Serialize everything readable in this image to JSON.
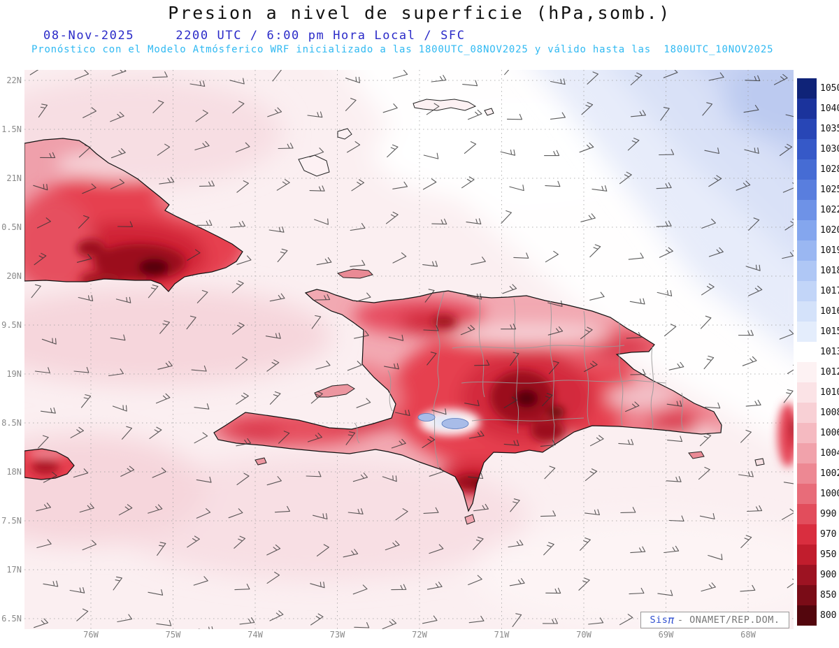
{
  "header": {
    "title": "Presion a nivel de superficie (hPa,somb.)",
    "subtitle": "08-Nov-2025     2200 UTC / 6:00 pm Hora Local / SFC",
    "forecast_note": "Pronóstico con el Modelo Atmósferico WRF inicializado a las 1800UTC_08NOV2025 y válido hasta las  1800UTC_10NOV2025"
  },
  "colors": {
    "title": "#111111",
    "subtitle": "#2a2ac8",
    "forecast_note": "#2fb9f2",
    "axis_labels": "#8a8a8a"
  },
  "axes": {
    "lat_labels": [
      "22N",
      "1.5N",
      "21N",
      "0.5N",
      "20N",
      "9.5N",
      "19N",
      "8.5N",
      "18N",
      "7.5N",
      "17N",
      "6.5N"
    ],
    "lon_labels": [
      "76W",
      "75W",
      "74W",
      "73W",
      "72W",
      "71W",
      "70W",
      "69W",
      "68W"
    ]
  },
  "colorbar": {
    "unit": "hPa",
    "labels": [
      "1050",
      "1040",
      "1035",
      "1030",
      "1028",
      "1025",
      "1022",
      "1020",
      "1019",
      "1018",
      "1017",
      "1016",
      "1015",
      "1013",
      "1012",
      "1010",
      "1008",
      "1006",
      "1004",
      "1002",
      "1000",
      "990",
      "970",
      "950",
      "900",
      "850",
      "800"
    ],
    "colors": [
      "#0f2378",
      "#1b339c",
      "#2846b6",
      "#3659c8",
      "#466cd4",
      "#597ede",
      "#6e92e7",
      "#84a6ee",
      "#9ab7f2",
      "#afc7f5",
      "#c2d5f8",
      "#d4e2fa",
      "#e4edfc",
      "#ffffff",
      "#fdf2f3",
      "#fbe3e6",
      "#f8d0d5",
      "#f5bac1",
      "#f1a2ab",
      "#ed8893",
      "#e86c79",
      "#e24d5c",
      "#d92e3f",
      "#c11d2d",
      "#9d1322",
      "#7a0c17",
      "#53060d"
    ]
  },
  "credit": {
    "brand": "Sis",
    "pi": "π",
    "org": "- ONAMET/REP.DOM."
  }
}
